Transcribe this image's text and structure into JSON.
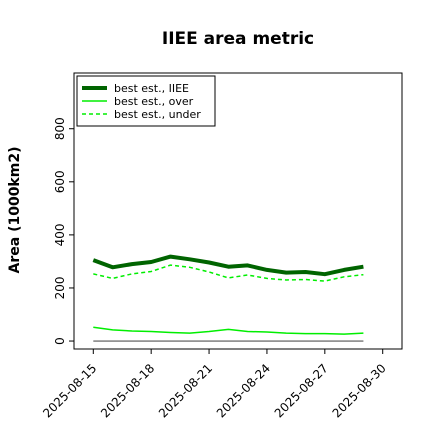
{
  "chart_data": {
    "type": "line",
    "title": "IIEE area metric",
    "xlabel": "",
    "ylabel": "Area (1000km2)",
    "x": [
      "2025-08-15",
      "2025-08-16",
      "2025-08-17",
      "2025-08-18",
      "2025-08-19",
      "2025-08-20",
      "2025-08-21",
      "2025-08-22",
      "2025-08-23",
      "2025-08-24",
      "2025-08-25",
      "2025-08-26",
      "2025-08-27",
      "2025-08-28",
      "2025-08-29"
    ],
    "xlim": [
      "2025-08-14",
      "2025-08-31"
    ],
    "xticks": [
      "2025-08-15",
      "2025-08-18",
      "2025-08-21",
      "2025-08-24",
      "2025-08-27",
      "2025-08-30"
    ],
    "ylim": [
      -30,
      1010
    ],
    "yticks": [
      0,
      200,
      400,
      600,
      800
    ],
    "grid": false,
    "legend_position": "top-left",
    "reference_line": {
      "y": 0,
      "color": "#555555"
    },
    "series": [
      {
        "name": "best est., IIEE",
        "color": "#006400",
        "style": "solid",
        "width": "thick",
        "values": [
          305,
          278,
          290,
          298,
          318,
          308,
          296,
          280,
          285,
          268,
          258,
          260,
          252,
          268,
          280
        ]
      },
      {
        "name": "best est., over",
        "color": "#00ee00",
        "style": "solid",
        "width": "thin",
        "values": [
          52,
          42,
          38,
          36,
          32,
          30,
          36,
          44,
          36,
          34,
          30,
          28,
          28,
          26,
          30
        ]
      },
      {
        "name": "best est., under",
        "color": "#00ee00",
        "style": "dashed",
        "width": "thin",
        "values": [
          253,
          236,
          253,
          262,
          286,
          278,
          260,
          238,
          249,
          236,
          230,
          232,
          226,
          242,
          250
        ]
      }
    ]
  }
}
